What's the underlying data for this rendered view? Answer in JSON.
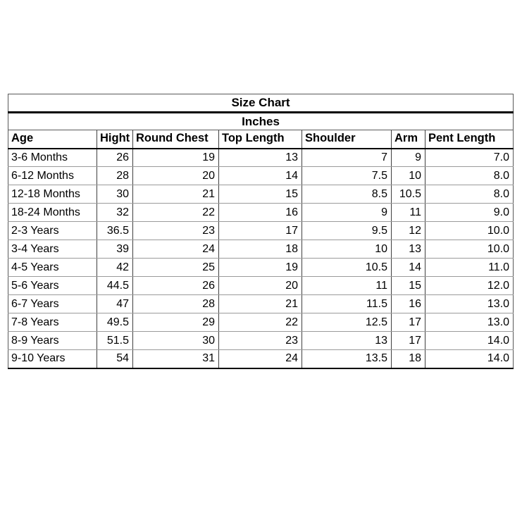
{
  "table": {
    "title": "Size Chart",
    "unit": "Inches",
    "columns": [
      "Age",
      "Hight",
      "Round Chest",
      "Top Length",
      "Shoulder",
      "Arm",
      "Pent Length"
    ],
    "rows": [
      [
        "3-6 Months",
        "26",
        "19",
        "13",
        "7",
        "9",
        "7.0"
      ],
      [
        "6-12 Months",
        "28",
        "20",
        "14",
        "7.5",
        "10",
        "8.0"
      ],
      [
        "12-18 Months",
        "30",
        "21",
        "15",
        "8.5",
        "10.5",
        "8.0"
      ],
      [
        "18-24 Months",
        "32",
        "22",
        "16",
        "9",
        "11",
        "9.0"
      ],
      [
        "2-3 Years",
        "36.5",
        "23",
        "17",
        "9.5",
        "12",
        "10.0"
      ],
      [
        "3-4 Years",
        "39",
        "24",
        "18",
        "10",
        "13",
        "10.0"
      ],
      [
        "4-5 Years",
        "42",
        "25",
        "19",
        "10.5",
        "14",
        "11.0"
      ],
      [
        "5-6 Years",
        "44.5",
        "26",
        "20",
        "11",
        "15",
        "12.0"
      ],
      [
        "6-7 Years",
        "47",
        "28",
        "21",
        "11.5",
        "16",
        "13.0"
      ],
      [
        "7-8 Years",
        "49.5",
        "29",
        "22",
        "12.5",
        "17",
        "13.0"
      ],
      [
        "8-9 Years",
        "51.5",
        "30",
        "23",
        "13",
        "17",
        "14.0"
      ],
      [
        "9-10 Years",
        "54",
        "31",
        "24",
        "13.5",
        "18",
        "14.0"
      ]
    ]
  },
  "colors": {
    "text": "#000000",
    "thick_border": "#000000",
    "thin_border": "#595959",
    "row_separator": "#9a9a9a",
    "background": "#ffffff"
  }
}
